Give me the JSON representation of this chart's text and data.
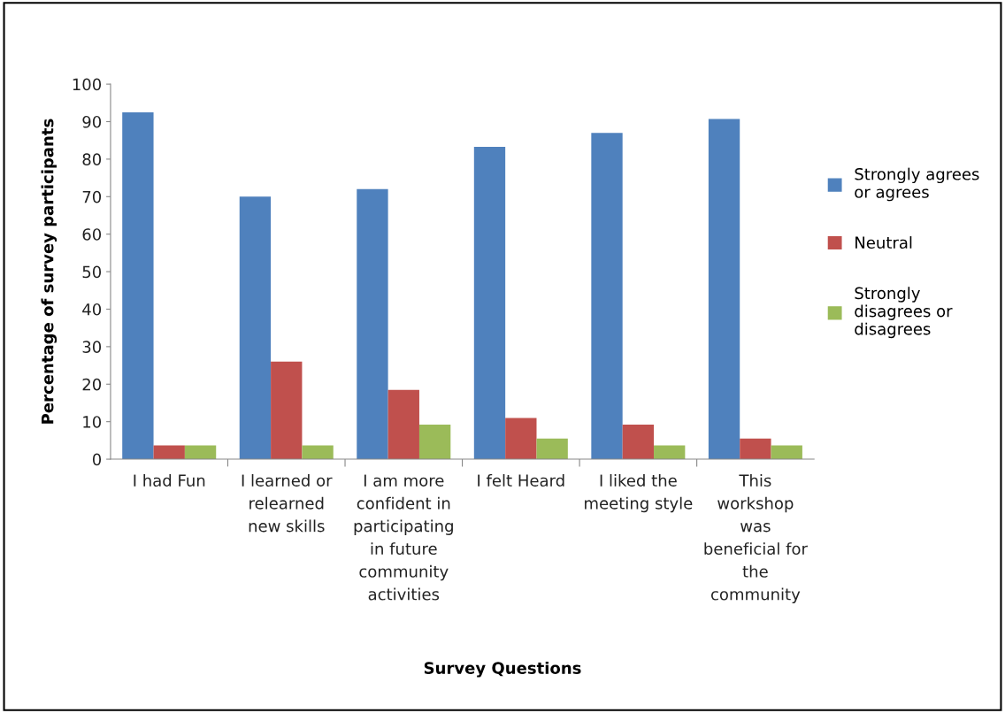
{
  "chart_data": {
    "type": "bar",
    "xlabel": "Survey Questions",
    "ylabel": "Percentage of survey participants",
    "categories": [
      "I had Fun",
      "I learned or\nrelearned\nnew skills",
      "I am more\nconfident in\nparticipating\nin future\ncommunity\nactivities",
      "I felt Heard",
      "I liked the\nmeeting style",
      "This\nworkshop\nwas\nbeneficial for\nthe\ncommunity"
    ],
    "series": [
      {
        "name": "Strongly agrees\nor agrees",
        "color": "#4f81bd",
        "values": [
          92.5,
          70,
          72,
          83.3,
          87,
          90.7
        ]
      },
      {
        "name": "Neutral",
        "color": "#c0504d",
        "values": [
          3.7,
          26,
          18.5,
          11,
          9.2,
          5.5
        ]
      },
      {
        "name": "Strongly\ndisagrees or\ndisagrees",
        "color": "#9bbb59",
        "values": [
          3.7,
          3.7,
          9.2,
          5.5,
          3.7,
          3.7
        ]
      }
    ],
    "ylim": [
      0,
      100
    ],
    "yticks": [
      0,
      10,
      20,
      30,
      40,
      50,
      60,
      70,
      80,
      90,
      100
    ],
    "grid": false,
    "legend": "right"
  }
}
